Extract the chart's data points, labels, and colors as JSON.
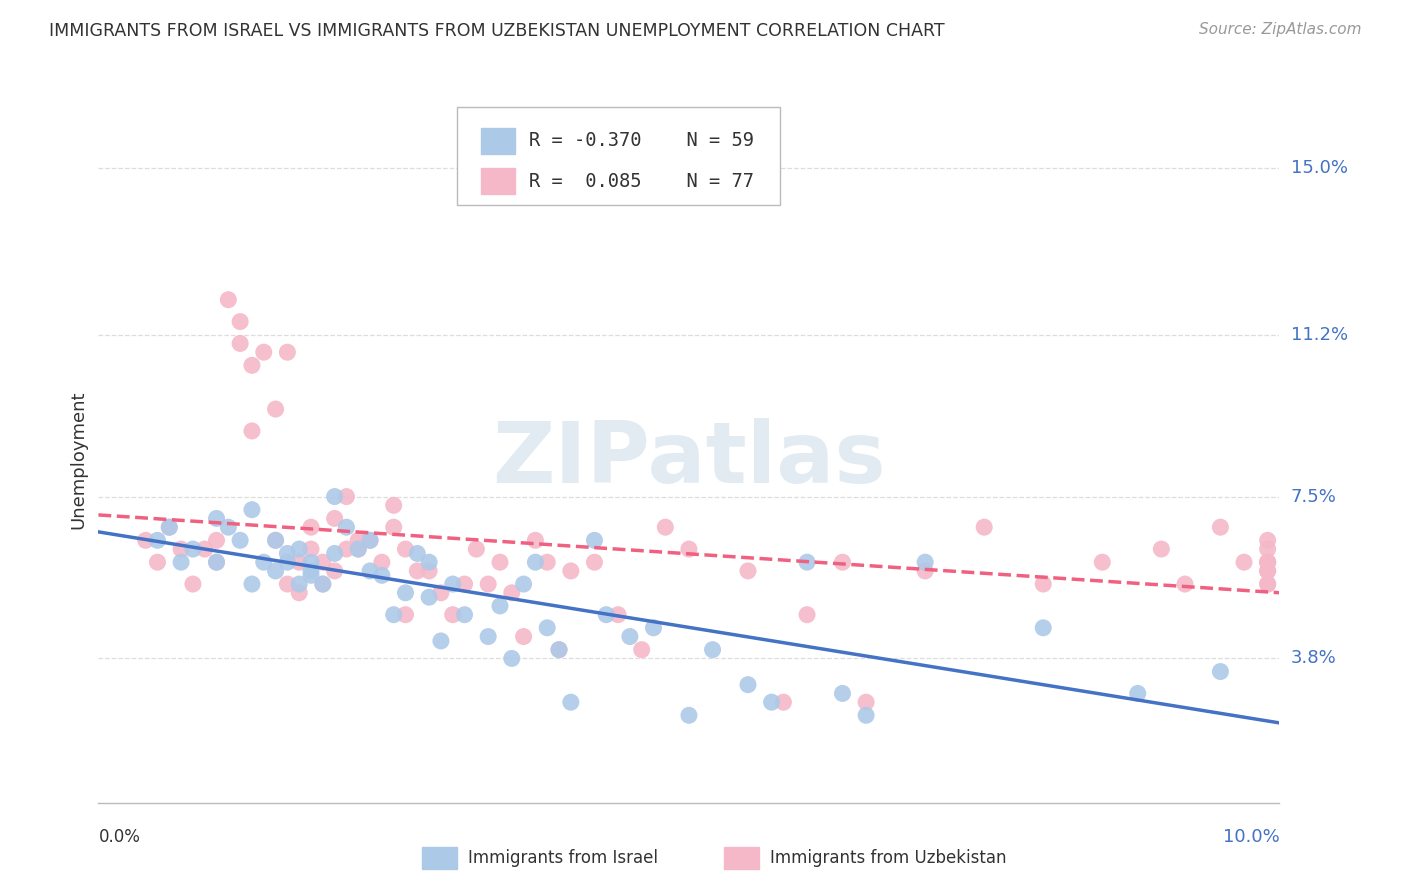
{
  "title": "IMMIGRANTS FROM ISRAEL VS IMMIGRANTS FROM UZBEKISTAN UNEMPLOYMENT CORRELATION CHART",
  "source": "Source: ZipAtlas.com",
  "ylabel": "Unemployment",
  "ytick_labels": [
    "3.8%",
    "7.5%",
    "11.2%",
    "15.0%"
  ],
  "ytick_values": [
    0.038,
    0.075,
    0.112,
    0.15
  ],
  "xlim": [
    0.0,
    0.1
  ],
  "ylim": [
    0.005,
    0.162
  ],
  "legend_israel_R": "-0.370",
  "legend_israel_N": "59",
  "legend_uzbekistan_R": "0.085",
  "legend_uzbekistan_N": "77",
  "israel_fill_color": "#adc9e8",
  "uzbekistan_fill_color": "#f4b8c8",
  "israel_line_color": "#4472c4",
  "uzbekistan_line_color": "#f06080",
  "grid_color": "#dddddd",
  "text_dark": "#333333",
  "text_blue": "#4472c4",
  "text_source": "#999999",
  "watermark_color": "#ccdce8",
  "israel_scatter_x": [
    0.005,
    0.006,
    0.007,
    0.008,
    0.01,
    0.01,
    0.011,
    0.012,
    0.013,
    0.013,
    0.014,
    0.015,
    0.015,
    0.016,
    0.016,
    0.017,
    0.017,
    0.018,
    0.018,
    0.018,
    0.019,
    0.02,
    0.02,
    0.021,
    0.022,
    0.023,
    0.023,
    0.024,
    0.025,
    0.026,
    0.027,
    0.028,
    0.028,
    0.029,
    0.03,
    0.031,
    0.033,
    0.034,
    0.035,
    0.036,
    0.037,
    0.038,
    0.039,
    0.04,
    0.042,
    0.043,
    0.045,
    0.047,
    0.05,
    0.052,
    0.055,
    0.057,
    0.06,
    0.063,
    0.065,
    0.07,
    0.08,
    0.088,
    0.095
  ],
  "israel_scatter_y": [
    0.065,
    0.068,
    0.06,
    0.063,
    0.07,
    0.06,
    0.068,
    0.065,
    0.055,
    0.072,
    0.06,
    0.065,
    0.058,
    0.062,
    0.06,
    0.063,
    0.055,
    0.058,
    0.057,
    0.06,
    0.055,
    0.062,
    0.075,
    0.068,
    0.063,
    0.058,
    0.065,
    0.057,
    0.048,
    0.053,
    0.062,
    0.06,
    0.052,
    0.042,
    0.055,
    0.048,
    0.043,
    0.05,
    0.038,
    0.055,
    0.06,
    0.045,
    0.04,
    0.028,
    0.065,
    0.048,
    0.043,
    0.045,
    0.025,
    0.04,
    0.032,
    0.028,
    0.06,
    0.03,
    0.025,
    0.06,
    0.045,
    0.03,
    0.035
  ],
  "uzbekistan_scatter_x": [
    0.004,
    0.005,
    0.006,
    0.007,
    0.008,
    0.009,
    0.01,
    0.01,
    0.011,
    0.012,
    0.012,
    0.013,
    0.013,
    0.014,
    0.015,
    0.015,
    0.016,
    0.016,
    0.017,
    0.017,
    0.018,
    0.018,
    0.019,
    0.019,
    0.02,
    0.02,
    0.021,
    0.021,
    0.022,
    0.022,
    0.023,
    0.024,
    0.025,
    0.025,
    0.026,
    0.026,
    0.027,
    0.028,
    0.029,
    0.03,
    0.031,
    0.032,
    0.033,
    0.034,
    0.035,
    0.036,
    0.037,
    0.038,
    0.039,
    0.04,
    0.042,
    0.044,
    0.046,
    0.048,
    0.05,
    0.055,
    0.058,
    0.06,
    0.063,
    0.065,
    0.07,
    0.075,
    0.08,
    0.085,
    0.09,
    0.092,
    0.095,
    0.097,
    0.099,
    0.099,
    0.099,
    0.099,
    0.099,
    0.099,
    0.099,
    0.099,
    0.099
  ],
  "uzbekistan_scatter_y": [
    0.065,
    0.06,
    0.068,
    0.063,
    0.055,
    0.063,
    0.06,
    0.065,
    0.12,
    0.11,
    0.115,
    0.105,
    0.09,
    0.108,
    0.095,
    0.065,
    0.108,
    0.055,
    0.053,
    0.06,
    0.063,
    0.068,
    0.055,
    0.06,
    0.058,
    0.07,
    0.063,
    0.075,
    0.063,
    0.065,
    0.065,
    0.06,
    0.068,
    0.073,
    0.063,
    0.048,
    0.058,
    0.058,
    0.053,
    0.048,
    0.055,
    0.063,
    0.055,
    0.06,
    0.053,
    0.043,
    0.065,
    0.06,
    0.04,
    0.058,
    0.06,
    0.048,
    0.04,
    0.068,
    0.063,
    0.058,
    0.028,
    0.048,
    0.06,
    0.028,
    0.058,
    0.068,
    0.055,
    0.06,
    0.063,
    0.055,
    0.068,
    0.06,
    0.055,
    0.06,
    0.058,
    0.065,
    0.06,
    0.058,
    0.055,
    0.063,
    0.06
  ]
}
